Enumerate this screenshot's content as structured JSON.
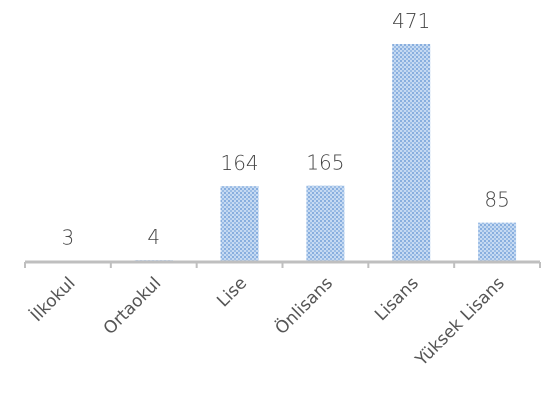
{
  "chart_data": {
    "type": "bar",
    "categories": [
      "İlkokul",
      "Ortaokul",
      "Lise",
      "Önlisans",
      "Lisans",
      "Yüksek Lisans"
    ],
    "values": [
      3,
      4,
      164,
      165,
      471,
      85
    ],
    "value_labels": [
      "3",
      "4",
      "164",
      "165",
      "471",
      "85"
    ],
    "title": "",
    "xlabel": "",
    "ylabel": "",
    "ylim": [
      0,
      471
    ],
    "grid": false,
    "legend": "none",
    "colors": {
      "bar_fill": "#c6daf2",
      "bar_pattern": "#5b8fd0",
      "axis": "#bfbfbf",
      "text": "#444444"
    }
  }
}
